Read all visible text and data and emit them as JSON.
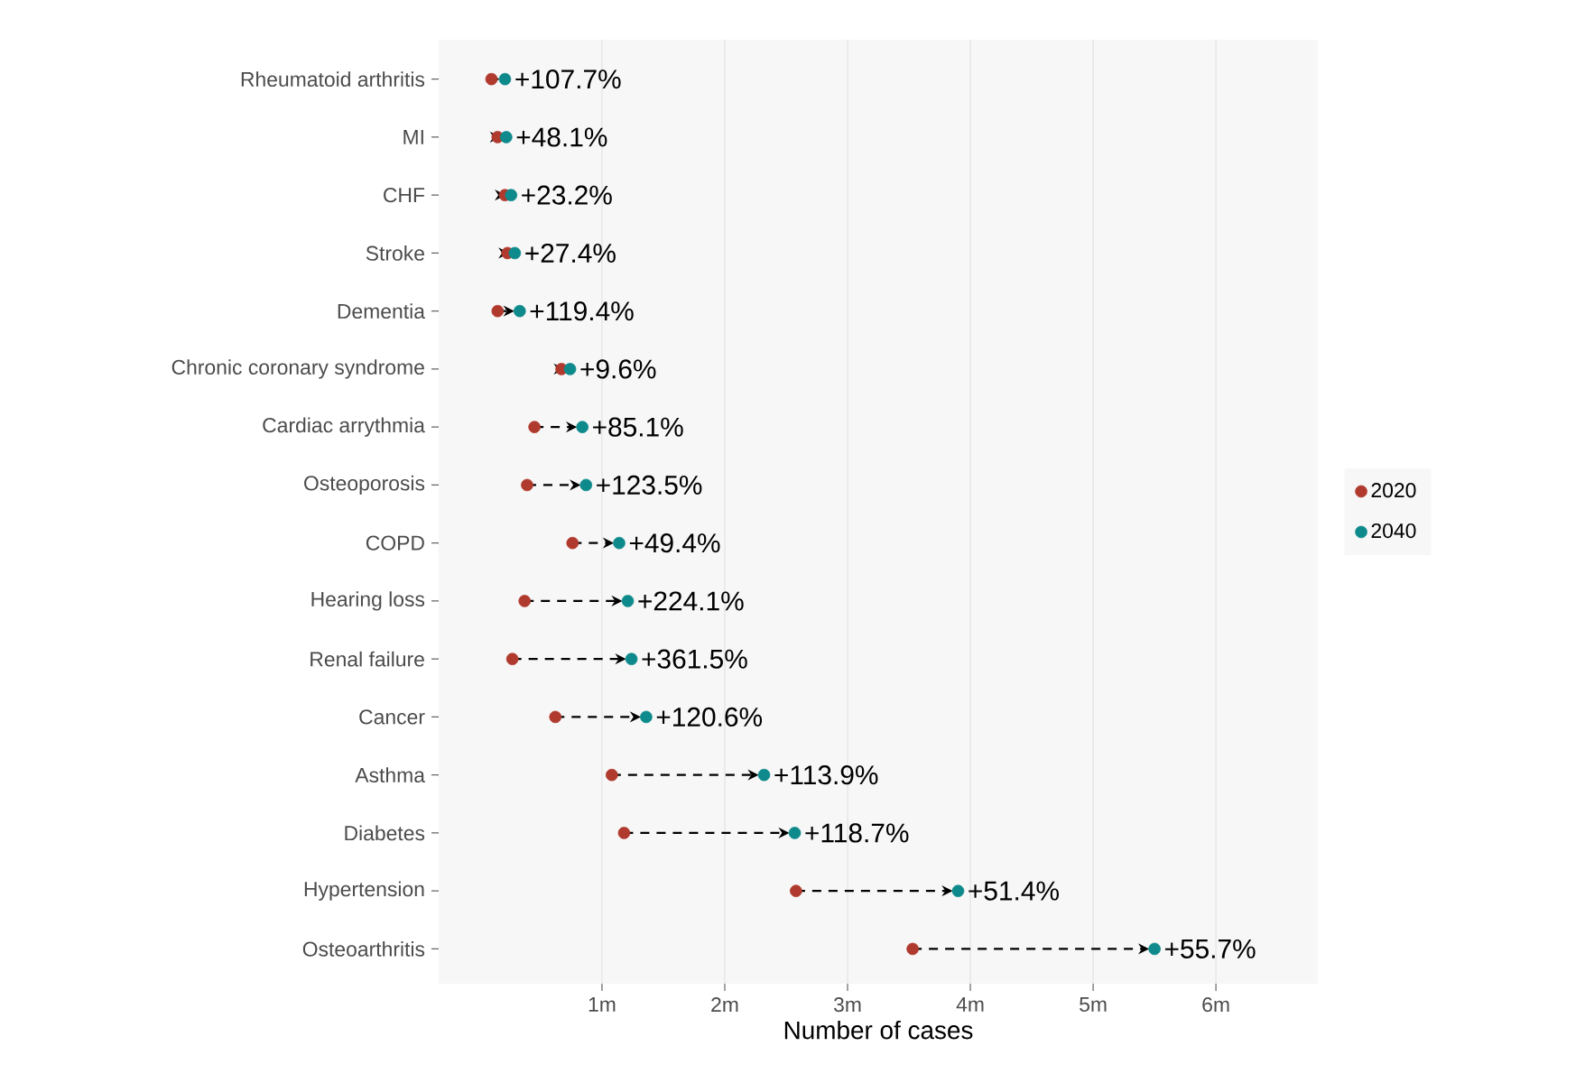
{
  "chart_data": {
    "type": "scatter",
    "orientation": "horizontal",
    "xlabel": "Number of cases",
    "categories": [
      "Rheumatoid arthritis",
      "MI",
      "CHF",
      "Stroke",
      "Dementia",
      "Chronic coronary syndrome",
      "Cardiac arrythmia",
      "Osteoporosis",
      "COPD",
      "Hearing loss",
      "Renal failure",
      "Cancer",
      "Asthma",
      "Diabetes",
      "Hypertension",
      "Osteoarthritis"
    ],
    "series": [
      {
        "name": "2020",
        "color": "#b03a2e",
        "values": [
          0.1,
          0.15,
          0.21,
          0.23,
          0.15,
          0.67,
          0.45,
          0.39,
          0.76,
          0.37,
          0.27,
          0.62,
          1.08,
          1.18,
          2.58,
          3.53
        ]
      },
      {
        "name": "2040",
        "color": "#0e8a8c",
        "values": [
          0.21,
          0.22,
          0.26,
          0.29,
          0.33,
          0.74,
          0.84,
          0.87,
          1.14,
          1.21,
          1.24,
          1.36,
          2.32,
          2.57,
          3.9,
          5.5
        ]
      }
    ],
    "annotations": [
      {
        "text": "+107.7%",
        "x": 0.21,
        "y": "Rheumatoid arthritis"
      },
      {
        "text": "+48.1%",
        "x": 0.22,
        "y": "MI"
      },
      {
        "text": "+23.2%",
        "x": 0.26,
        "y": "CHF"
      },
      {
        "text": "+27.4%",
        "x": 0.29,
        "y": "Stroke"
      },
      {
        "text": "+119.4%",
        "x": 0.33,
        "y": "Dementia"
      },
      {
        "text": "+9.6%",
        "x": 0.74,
        "y": "Chronic coronary syndrome"
      },
      {
        "text": "+85.1%",
        "x": 0.84,
        "y": "Cardiac arrythmia"
      },
      {
        "text": "+123.5%",
        "x": 0.87,
        "y": "Osteoporosis"
      },
      {
        "text": "+49.4%",
        "x": 1.14,
        "y": "COPD"
      },
      {
        "text": "+224.1%",
        "x": 1.21,
        "y": "Hearing loss"
      },
      {
        "text": "+361.5%",
        "x": 1.24,
        "y": "Renal failure"
      },
      {
        "text": "+120.6%",
        "x": 1.36,
        "y": "Cancer"
      },
      {
        "text": "+113.9%",
        "x": 2.32,
        "y": "Asthma"
      },
      {
        "text": "+118.7%",
        "x": 2.57,
        "y": "Diabetes"
      },
      {
        "text": "+51.4%",
        "x": 3.9,
        "y": "Hypertension"
      },
      {
        "text": "+55.7%",
        "x": 5.5,
        "y": "Osteoarthritis"
      }
    ],
    "xlim": [
      -0.33,
      6.83
    ],
    "xticks": [
      {
        "value": 1,
        "label": "1m"
      },
      {
        "value": 2,
        "label": "2m"
      },
      {
        "value": 3,
        "label": "3m"
      },
      {
        "value": 4,
        "label": "4m"
      },
      {
        "value": 5,
        "label": "5m"
      },
      {
        "value": 6,
        "label": "6m"
      }
    ],
    "grid": "x",
    "legend": "right"
  }
}
